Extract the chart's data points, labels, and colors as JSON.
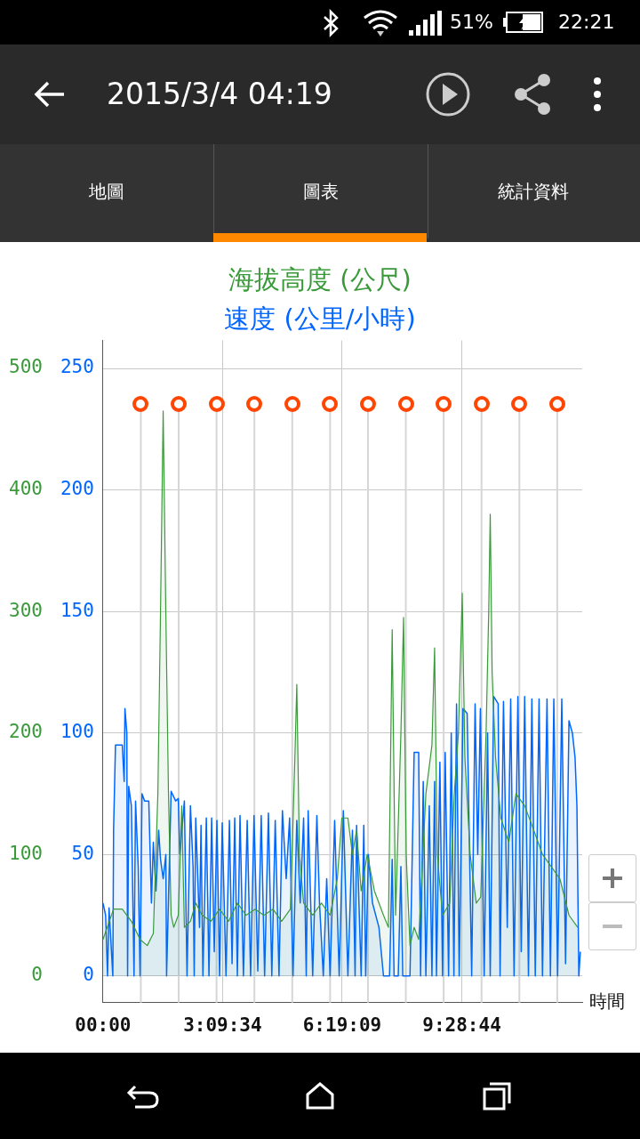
{
  "chart_data": {
    "type": "area",
    "xlabel": "時間",
    "annotations": [
      "2015/3/4 04:19",
      "地圖",
      "圖表",
      "統計資料",
      "51%",
      "22:21"
    ],
    "xlim": [
      0,
      12.66
    ],
    "xticks": [
      {
        "value": 0,
        "label": "00:00"
      },
      {
        "value": 3.1594,
        "label": "3:09:34"
      },
      {
        "value": 6.3192,
        "label": "6:19:09"
      },
      {
        "value": 9.4789,
        "label": "9:28:44"
      }
    ],
    "ylim": [
      -22,
      523
    ],
    "yticks": [
      0,
      100,
      200,
      300,
      400,
      500
    ],
    "y2lim": [
      -11,
      261.5
    ],
    "y2ticks": [
      0,
      50,
      100,
      150,
      200,
      250
    ],
    "grid": true,
    "legend": false,
    "marker": "none",
    "line_style": "solid",
    "ref_lines": [
      {
        "axis": "x",
        "value": 1,
        "color": "#d6d6d6"
      },
      {
        "axis": "x",
        "value": 2,
        "color": "#d6d6d6"
      },
      {
        "axis": "x",
        "value": 3,
        "color": "#d6d6d6"
      },
      {
        "axis": "x",
        "value": 4,
        "color": "#d6d6d6"
      },
      {
        "axis": "x",
        "value": 5,
        "color": "#d6d6d6"
      },
      {
        "axis": "x",
        "value": 6,
        "color": "#d6d6d6"
      },
      {
        "axis": "x",
        "value": 7,
        "color": "#d6d6d6"
      },
      {
        "axis": "x",
        "value": 8,
        "color": "#d6d6d6"
      },
      {
        "axis": "x",
        "value": 9,
        "color": "#d6d6d6"
      },
      {
        "axis": "x",
        "value": 10,
        "color": "#d6d6d6"
      },
      {
        "axis": "x",
        "value": 11,
        "color": "#d6d6d6"
      },
      {
        "axis": "x",
        "value": 12,
        "color": "#d6d6d6"
      }
    ],
    "series": [
      {
        "name": "海拔高度 (公尺)",
        "color": "#3a9a3a",
        "x": [
          0,
          0.28,
          0.51,
          0.75,
          0.98,
          1.17,
          1.33,
          1.45,
          1.52,
          1.59,
          1.66,
          1.73,
          1.8,
          1.87,
          1.99,
          2.08,
          2.15,
          2.31,
          2.45,
          2.62,
          2.85,
          3.08,
          3.32,
          3.55,
          3.78,
          4.02,
          4.25,
          4.49,
          4.72,
          4.95,
          5.07,
          5.12,
          5.19,
          5.3,
          5.54,
          5.77,
          6,
          6.19,
          6.31,
          6.47,
          6.59,
          6.7,
          6.82,
          6.98,
          7.17,
          7.41,
          7.54,
          7.64,
          7.73,
          7.87,
          7.94,
          8.01,
          8.11,
          8.22,
          8.34,
          8.53,
          8.69,
          8.76,
          8.83,
          8.97,
          9.16,
          9.28,
          9.39,
          9.49,
          9.56,
          9.7,
          9.86,
          9.98,
          10.12,
          10.19,
          10.23,
          10.28,
          10.37,
          10.51,
          10.72,
          10.91,
          11.14,
          11.38,
          11.61,
          11.84,
          12.07,
          12.31,
          12.54
        ],
        "values": [
          30,
          55,
          55,
          45,
          30,
          25,
          35,
          150,
          300,
          465,
          300,
          150,
          50,
          40,
          50,
          140,
          40,
          45,
          60,
          50,
          45,
          55,
          45,
          60,
          50,
          55,
          50,
          55,
          45,
          55,
          180,
          240,
          100,
          60,
          50,
          60,
          50,
          80,
          130,
          130,
          100,
          120,
          70,
          100,
          70,
          50,
          40,
          285,
          50,
          200,
          295,
          100,
          25,
          40,
          30,
          150,
          190,
          270,
          100,
          50,
          60,
          150,
          200,
          315,
          180,
          100,
          60,
          65,
          200,
          300,
          380,
          250,
          180,
          130,
          110,
          150,
          140,
          120,
          100,
          90,
          80,
          50,
          40
        ]
      },
      {
        "name": "速度 (公里/小時)",
        "axis": "y2",
        "color": "#0066ff",
        "x": [
          0,
          0.07,
          0.12,
          0.16,
          0.26,
          0.28,
          0.33,
          0.4,
          0.51,
          0.56,
          0.58,
          0.63,
          0.65,
          0.68,
          0.75,
          0.82,
          0.86,
          0.93,
          0.98,
          1.03,
          1.1,
          1.21,
          1.28,
          1.33,
          1.4,
          1.47,
          1.52,
          1.59,
          1.66,
          1.68,
          1.8,
          1.92,
          1.99,
          2.03,
          2.15,
          2.22,
          2.31,
          2.38,
          2.41,
          2.45,
          2.55,
          2.59,
          2.64,
          2.73,
          2.8,
          2.87,
          2.94,
          3.01,
          3.08,
          3.15,
          3.25,
          3.34,
          3.41,
          3.48,
          3.55,
          3.62,
          3.71,
          3.81,
          3.9,
          3.99,
          4.09,
          4.18,
          4.27,
          4.37,
          4.46,
          4.55,
          4.65,
          4.74,
          4.84,
          4.93,
          5.02,
          5.12,
          5.21,
          5.3,
          5.37,
          5.42,
          5.54,
          5.65,
          5.72,
          5.82,
          5.91,
          6,
          6.12,
          6.24,
          6.35,
          6.47,
          6.59,
          6.66,
          6.7,
          6.82,
          6.89,
          6.94,
          7.01,
          7.12,
          7.29,
          7.41,
          7.57,
          7.64,
          7.69,
          7.8,
          7.87,
          7.92,
          8.11,
          8.22,
          8.34,
          8.39,
          8.46,
          8.53,
          8.62,
          8.69,
          8.76,
          8.81,
          8.9,
          8.97,
          9.04,
          9.13,
          9.2,
          9.27,
          9.34,
          9.41,
          9.51,
          9.62,
          9.74,
          9.83,
          9.9,
          9.97,
          10.07,
          10.16,
          10.23,
          10.32,
          10.44,
          10.49,
          10.58,
          10.68,
          10.77,
          10.86,
          10.96,
          11.05,
          11.14,
          11.24,
          11.33,
          11.42,
          11.52,
          11.61,
          11.73,
          11.82,
          11.91,
          12.01,
          12.12,
          12.22,
          12.31,
          12.4,
          12.47,
          12.52,
          12.57,
          12.61
        ],
        "values": [
          30,
          25,
          0,
          28,
          0,
          60,
          95,
          95,
          95,
          80,
          110,
          100,
          0,
          78,
          70,
          0,
          72,
          45,
          0,
          75,
          72,
          72,
          30,
          55,
          35,
          60,
          48,
          40,
          50,
          0,
          76,
          72,
          73,
          50,
          72,
          0,
          70,
          45,
          0,
          65,
          20,
          62,
          0,
          65,
          0,
          65,
          10,
          64,
          0,
          63,
          0,
          64,
          5,
          65,
          0,
          66,
          0,
          64,
          0,
          66,
          2,
          66,
          0,
          67,
          0,
          64,
          0,
          68,
          40,
          65,
          0,
          64,
          30,
          65,
          0,
          68,
          0,
          66,
          30,
          0,
          40,
          0,
          64,
          0,
          68,
          0,
          60,
          0,
          62,
          0,
          62,
          0,
          50,
          30,
          20,
          0,
          0,
          48,
          0,
          0,
          45,
          0,
          0,
          92,
          92,
          0,
          80,
          0,
          70,
          0,
          80,
          0,
          88,
          0,
          92,
          0,
          100,
          0,
          112,
          0,
          110,
          108,
          0,
          112,
          50,
          110,
          0,
          100,
          0,
          115,
          112,
          0,
          113,
          20,
          114,
          0,
          115,
          10,
          115,
          0,
          114,
          0,
          114,
          0,
          114,
          0,
          114,
          0,
          114,
          5,
          105,
          100,
          90,
          70,
          0,
          10
        ]
      }
    ]
  }
}
